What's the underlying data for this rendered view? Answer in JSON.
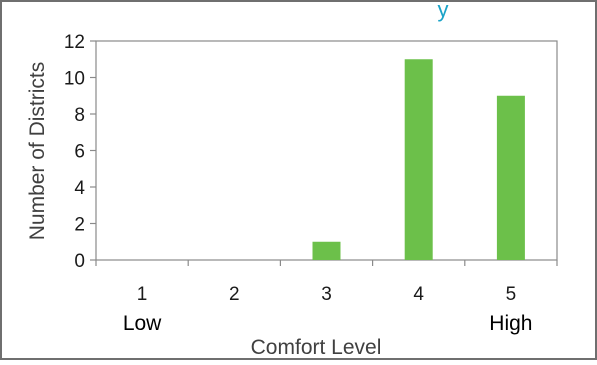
{
  "chart_data": {
    "type": "bar",
    "title": "y",
    "xlabel": "Comfort Level",
    "ylabel": "Number of Districts",
    "categories": [
      "1",
      "2",
      "3",
      "4",
      "5"
    ],
    "category_sublabels": [
      "Low",
      "",
      "",
      "",
      "High"
    ],
    "values": [
      0,
      0,
      1,
      11,
      9
    ],
    "ylim": [
      0,
      12
    ],
    "yticks": [
      0,
      2,
      4,
      6,
      8,
      10,
      12
    ],
    "ytick_labels": [
      "0",
      "2",
      "4",
      "6",
      "8",
      "10",
      "12"
    ],
    "grid": false,
    "legend": "none",
    "colors": {
      "bar": "#6cc04a",
      "axis": "#8a8a8a",
      "text": "#1a1a1a",
      "label": "#404040",
      "title": "#1aa3c8",
      "frame": "#6f6f6f"
    }
  }
}
